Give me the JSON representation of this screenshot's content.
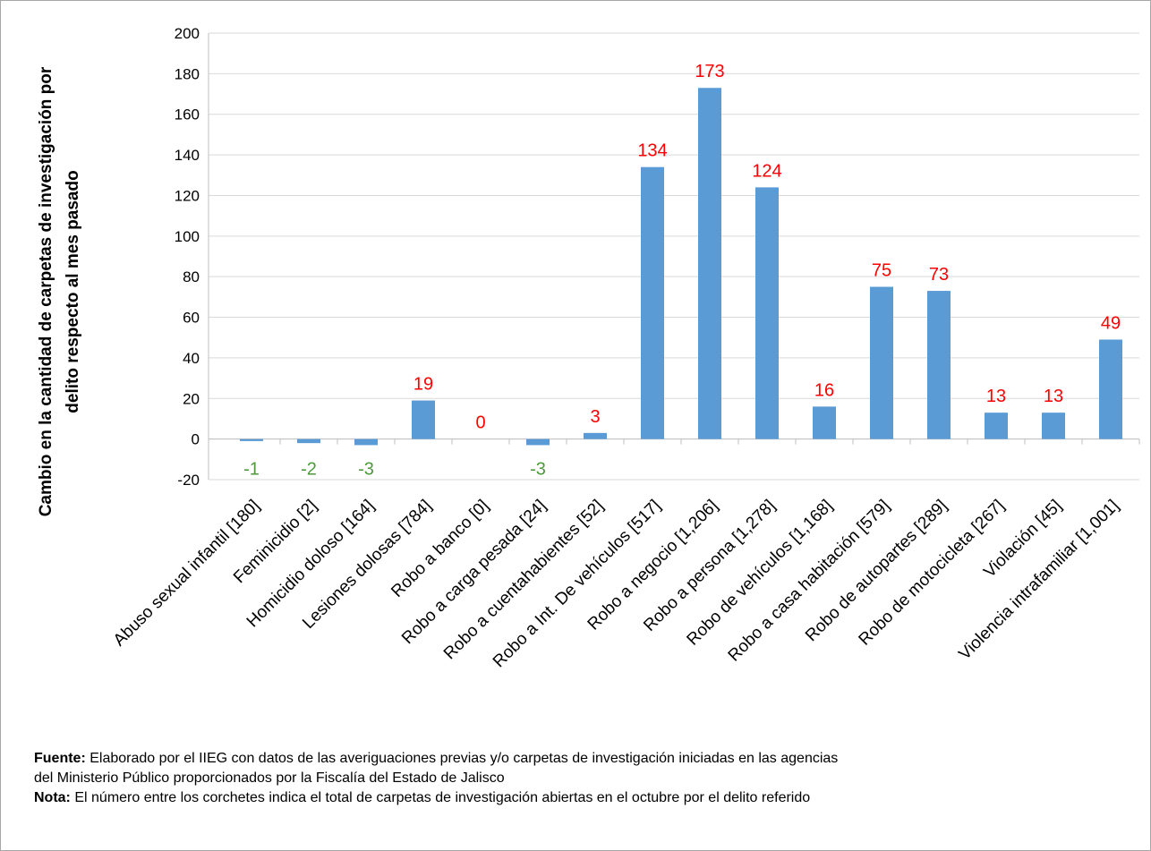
{
  "chart_data": {
    "type": "bar",
    "ylabel": [
      "Cambio en la cantidad de carpetas de investigación por",
      "delito respecto al mes pasado"
    ],
    "categories": [
      "Abuso sexual infantil [180]",
      "Feminicidio [2]",
      "Homicidio doloso [164]",
      "Lesiones dolosas [784]",
      "Robo a banco [0]",
      "Robo a carga pesada [24]",
      "Robo a cuentahabientes [52]",
      "Robo a Int. De vehículos [517]",
      "Robo a negocio [1,206]",
      "Robo a persona [1,278]",
      "Robo de vehículos [1,168]",
      "Robo a casa habitación [579]",
      "Robo de autopartes [289]",
      "Robo de motocicleta [267]",
      "Violación [45]",
      "Violencia intrafamiliar [1,001]"
    ],
    "values": [
      -1,
      -2,
      -3,
      19,
      0,
      -3,
      3,
      134,
      173,
      124,
      16,
      75,
      73,
      13,
      13,
      49
    ],
    "color": "#5b9bd5",
    "label_colors": {
      "positive": "#ff0000",
      "negative": "#4e9a3a"
    },
    "ylim": [
      -20,
      200
    ],
    "yticks": [
      -20,
      0,
      20,
      40,
      60,
      80,
      100,
      120,
      140,
      160,
      180,
      200
    ],
    "grid": true
  },
  "footer": {
    "source_label": "Fuente:",
    "source_lines": [
      "Elaborado por el IIEG con datos de las averiguaciones previas y/o carpetas de investigación iniciadas en las agencias",
      "del Ministerio Público proporcionados por la Fiscalía del Estado de Jalisco"
    ],
    "note_label": "Nota:",
    "note_text": "El número entre los corchetes indica el total de carpetas de investigación abiertas en el octubre por el delito referido"
  }
}
